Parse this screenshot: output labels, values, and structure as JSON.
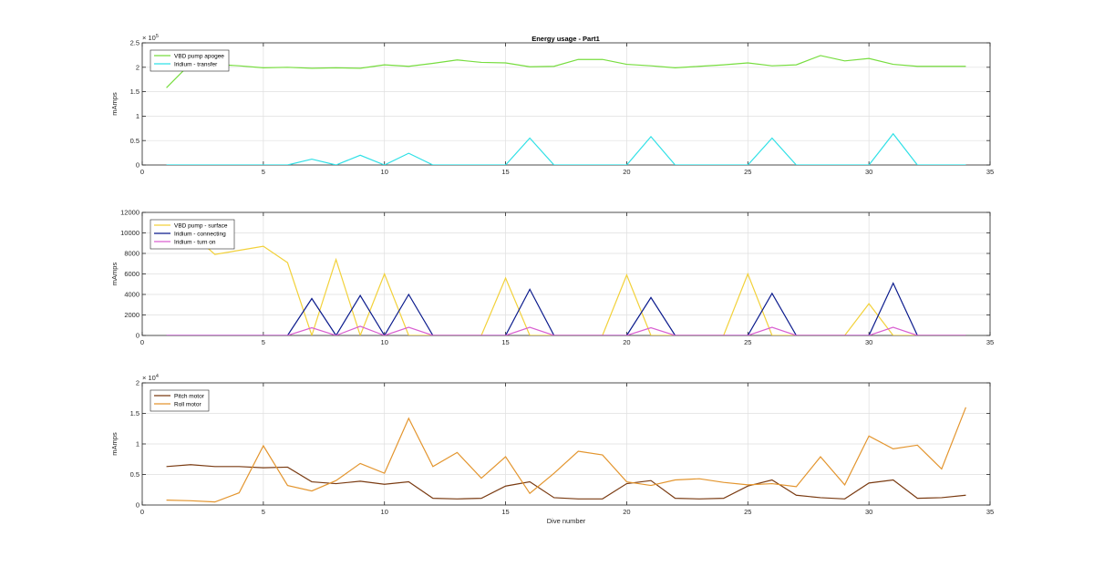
{
  "chart_data": [
    {
      "type": "line",
      "title": "Energy usage - Part1",
      "xlabel": "",
      "ylabel": "mAmps",
      "xlim": [
        0,
        35
      ],
      "ylim": [
        0,
        250000
      ],
      "xticks": [
        "0",
        "5",
        "10",
        "15",
        "20",
        "25",
        "30",
        "35"
      ],
      "yticks": [
        "0",
        "0.5",
        "1",
        "1.5",
        "2",
        "2.5"
      ],
      "y_exponent": "× 10",
      "y_exponent_power": "5",
      "grid": true,
      "legend_position": "top-left",
      "x": [
        1,
        2,
        3,
        4,
        5,
        6,
        7,
        8,
        9,
        10,
        11,
        12,
        13,
        14,
        15,
        16,
        17,
        18,
        19,
        20,
        21,
        22,
        23,
        24,
        25,
        26,
        27,
        28,
        29,
        30,
        31,
        32,
        33,
        34
      ],
      "series": [
        {
          "name": "VBD pump apogee",
          "color": "#77dd3f",
          "values": [
            158000,
            208000,
            206000,
            203000,
            199000,
            200000,
            198000,
            199000,
            198000,
            205000,
            202000,
            208000,
            215000,
            210000,
            209000,
            201000,
            202000,
            216000,
            216000,
            206000,
            203000,
            199000,
            202000,
            205000,
            209000,
            203000,
            205000,
            224000,
            213000,
            218000,
            206000,
            202000,
            202000,
            202000
          ]
        },
        {
          "name": "Iridium - transfer",
          "color": "#2fe0e6",
          "values": [
            0,
            0,
            0,
            0,
            0,
            0,
            12000,
            0,
            20000,
            0,
            24000,
            0,
            0,
            0,
            0,
            55000,
            0,
            0,
            0,
            0,
            58000,
            0,
            0,
            0,
            0,
            55000,
            0,
            0,
            0,
            0,
            64000,
            0,
            0,
            0
          ]
        }
      ]
    },
    {
      "type": "line",
      "title": "",
      "xlabel": "",
      "ylabel": "mAmps",
      "xlim": [
        0,
        35
      ],
      "ylim": [
        0,
        12000
      ],
      "xticks": [
        "0",
        "5",
        "10",
        "15",
        "20",
        "25",
        "30",
        "35"
      ],
      "yticks": [
        "0",
        "2000",
        "4000",
        "6000",
        "8000",
        "10000",
        "12000"
      ],
      "grid": true,
      "legend_position": "top-left",
      "x": [
        1,
        2,
        3,
        4,
        5,
        6,
        7,
        8,
        9,
        10,
        11,
        12,
        13,
        14,
        15,
        16,
        17,
        18,
        19,
        20,
        21,
        22,
        23,
        24,
        25,
        26,
        27,
        28,
        29,
        30,
        31,
        32,
        33,
        34
      ],
      "series": [
        {
          "name": "VBD pump - surface",
          "color": "#f2d13a",
          "values": [
            11000,
            10000,
            7900,
            8300,
            8700,
            7100,
            0,
            7400,
            0,
            6000,
            0,
            0,
            0,
            0,
            5600,
            0,
            0,
            0,
            0,
            5900,
            0,
            0,
            0,
            0,
            6000,
            0,
            0,
            0,
            0,
            3100,
            0,
            0,
            0,
            0
          ]
        },
        {
          "name": "Iridium - connecting",
          "color": "#0a1a8c",
          "values": [
            0,
            0,
            0,
            0,
            0,
            0,
            3600,
            0,
            3900,
            0,
            4000,
            0,
            0,
            0,
            0,
            4500,
            0,
            0,
            0,
            0,
            3700,
            0,
            0,
            0,
            0,
            4100,
            0,
            0,
            0,
            0,
            5100,
            0,
            0,
            0
          ]
        },
        {
          "name": "Iridium - turn on",
          "color": "#d95fd1",
          "values": [
            0,
            0,
            0,
            0,
            0,
            0,
            750,
            0,
            900,
            0,
            800,
            0,
            0,
            0,
            0,
            800,
            0,
            0,
            0,
            0,
            750,
            0,
            0,
            0,
            0,
            800,
            0,
            0,
            0,
            0,
            800,
            0,
            0,
            0
          ]
        }
      ]
    },
    {
      "type": "line",
      "title": "",
      "xlabel": "Dive number",
      "ylabel": "mAmps",
      "xlim": [
        0,
        35
      ],
      "ylim": [
        0,
        20000
      ],
      "xticks": [
        "0",
        "5",
        "10",
        "15",
        "20",
        "25",
        "30",
        "35"
      ],
      "yticks": [
        "0",
        "0.5",
        "1",
        "1.5",
        "2"
      ],
      "y_exponent": "× 10",
      "y_exponent_power": "4",
      "grid": true,
      "legend_position": "top-left",
      "x": [
        1,
        2,
        3,
        4,
        5,
        6,
        7,
        8,
        9,
        10,
        11,
        12,
        13,
        14,
        15,
        16,
        17,
        18,
        19,
        20,
        21,
        22,
        23,
        24,
        25,
        26,
        27,
        28,
        29,
        30,
        31,
        32,
        33,
        34
      ],
      "series": [
        {
          "name": "Pitch motor",
          "color": "#7a3b12",
          "values": [
            6300,
            6600,
            6300,
            6300,
            6100,
            6200,
            3800,
            3500,
            3900,
            3400,
            3800,
            1100,
            1000,
            1100,
            3100,
            3800,
            1200,
            1000,
            1000,
            3500,
            4000,
            1100,
            1000,
            1100,
            3100,
            4100,
            1600,
            1200,
            1000,
            3600,
            4100,
            1100,
            1200,
            1600
          ]
        },
        {
          "name": "Roll motor",
          "color": "#e3952e",
          "values": [
            800,
            700,
            500,
            2000,
            9700,
            3200,
            2300,
            4000,
            6800,
            5200,
            14200,
            6300,
            8600,
            4400,
            7900,
            1900,
            5200,
            8800,
            8200,
            3800,
            3200,
            4100,
            4300,
            3700,
            3300,
            3500,
            3000,
            7900,
            3300,
            11300,
            9200,
            9800,
            5900,
            16000
          ]
        }
      ]
    }
  ]
}
